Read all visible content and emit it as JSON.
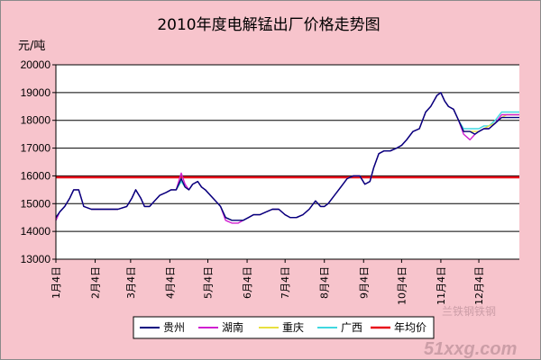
{
  "chart_data": {
    "type": "line",
    "title": "2010年度电解锰出厂价格走势图",
    "ylabel": "元/吨",
    "xlabel": "",
    "ylim": [
      13000,
      20000
    ],
    "yticks": [
      13000,
      14000,
      15000,
      16000,
      17000,
      18000,
      19000,
      20000
    ],
    "xlim": [
      "2010-01-04",
      "2011-01-05"
    ],
    "xticks": [
      "1月4日",
      "2月4日",
      "3月4日",
      "4月4日",
      "5月4日",
      "6月4日",
      "7月4日",
      "8月4日",
      "9月4日",
      "10月4日",
      "11月4日",
      "12月4日"
    ],
    "xtick_dates": [
      "2010-01-04",
      "2010-02-04",
      "2010-03-04",
      "2010-04-04",
      "2010-05-04",
      "2010-06-04",
      "2010-07-04",
      "2010-08-04",
      "2010-09-04",
      "2010-10-04",
      "2010-11-04",
      "2010-12-04"
    ],
    "grid": "horizontal",
    "legend_position": "bottom",
    "series": [
      {
        "name": "贵州",
        "color": "#000080",
        "x": [
          "2010-01-04",
          "2010-01-07",
          "2010-01-11",
          "2010-01-15",
          "2010-01-18",
          "2010-01-22",
          "2010-01-26",
          "2010-02-01",
          "2010-02-04",
          "2010-02-08",
          "2010-02-15",
          "2010-02-22",
          "2010-03-01",
          "2010-03-05",
          "2010-03-08",
          "2010-03-12",
          "2010-03-15",
          "2010-03-19",
          "2010-03-23",
          "2010-03-27",
          "2010-04-01",
          "2010-04-05",
          "2010-04-09",
          "2010-04-13",
          "2010-04-16",
          "2010-04-19",
          "2010-04-22",
          "2010-04-26",
          "2010-04-29",
          "2010-05-02",
          "2010-05-06",
          "2010-05-10",
          "2010-05-14",
          "2010-05-18",
          "2010-05-23",
          "2010-05-28",
          "2010-06-01",
          "2010-06-05",
          "2010-06-09",
          "2010-06-14",
          "2010-06-19",
          "2010-06-24",
          "2010-06-29",
          "2010-07-04",
          "2010-07-08",
          "2010-07-13",
          "2010-07-18",
          "2010-07-23",
          "2010-07-28",
          "2010-08-01",
          "2010-08-04",
          "2010-08-07",
          "2010-08-12",
          "2010-08-17",
          "2010-08-22",
          "2010-08-27",
          "2010-09-01",
          "2010-09-05",
          "2010-09-09",
          "2010-09-12",
          "2010-09-16",
          "2010-09-20",
          "2010-09-25",
          "2010-09-30",
          "2010-10-04",
          "2010-10-08",
          "2010-10-13",
          "2010-10-18",
          "2010-10-23",
          "2010-10-27",
          "2010-11-01",
          "2010-11-04",
          "2010-11-07",
          "2010-11-10",
          "2010-11-14",
          "2010-11-18",
          "2010-11-22",
          "2010-11-27",
          "2010-12-01",
          "2010-12-04",
          "2010-12-08",
          "2010-12-12",
          "2010-12-17",
          "2010-12-22",
          "2010-12-26",
          "2011-01-05"
        ],
        "values": [
          14500,
          14700,
          14900,
          15200,
          15500,
          15500,
          14900,
          14800,
          14800,
          14800,
          14800,
          14800,
          14900,
          15200,
          15500,
          15200,
          14900,
          14900,
          15100,
          15300,
          15400,
          15500,
          15500,
          15900,
          15600,
          15500,
          15700,
          15800,
          15600,
          15500,
          15300,
          15100,
          14900,
          14500,
          14400,
          14400,
          14400,
          14500,
          14600,
          14600,
          14700,
          14800,
          14800,
          14600,
          14500,
          14500,
          14600,
          14800,
          15100,
          14900,
          14900,
          15000,
          15300,
          15600,
          15900,
          16000,
          16000,
          15700,
          15800,
          16300,
          16800,
          16900,
          16900,
          17000,
          17100,
          17300,
          17600,
          17700,
          18300,
          18500,
          18900,
          19000,
          18700,
          18500,
          18400,
          18000,
          17600,
          17600,
          17500,
          17600,
          17700,
          17700,
          17900,
          18100,
          18100,
          18100
        ]
      },
      {
        "name": "湖南",
        "color": "#d020d0",
        "x": [
          "2010-01-04",
          "2010-01-07",
          "2010-01-11",
          "2010-01-15",
          "2010-01-18",
          "2010-01-22",
          "2010-01-26",
          "2010-02-01",
          "2010-02-04",
          "2010-02-08",
          "2010-02-15",
          "2010-02-22",
          "2010-03-01",
          "2010-03-05",
          "2010-03-08",
          "2010-03-12",
          "2010-03-15",
          "2010-03-19",
          "2010-03-23",
          "2010-03-27",
          "2010-04-01",
          "2010-04-05",
          "2010-04-09",
          "2010-04-13",
          "2010-04-16",
          "2010-04-19",
          "2010-04-22",
          "2010-04-26",
          "2010-04-29",
          "2010-05-02",
          "2010-05-06",
          "2010-05-10",
          "2010-05-14",
          "2010-05-18",
          "2010-05-23",
          "2010-05-28",
          "2010-06-01",
          "2010-06-05",
          "2010-06-09",
          "2010-06-14",
          "2010-06-19",
          "2010-06-24",
          "2010-06-29",
          "2010-07-04",
          "2010-07-08",
          "2010-07-13",
          "2010-07-18",
          "2010-07-23",
          "2010-07-28",
          "2010-08-01",
          "2010-08-04",
          "2010-08-07",
          "2010-08-12",
          "2010-08-17",
          "2010-08-22",
          "2010-08-27",
          "2010-09-01",
          "2010-09-05",
          "2010-09-09",
          "2010-09-12",
          "2010-09-16",
          "2010-09-20",
          "2010-09-25",
          "2010-09-30",
          "2010-10-04",
          "2010-10-08",
          "2010-10-13",
          "2010-10-18",
          "2010-10-23",
          "2010-10-27",
          "2010-11-01",
          "2010-11-04",
          "2010-11-07",
          "2010-11-10",
          "2010-11-14",
          "2010-11-18",
          "2010-11-22",
          "2010-11-27",
          "2010-12-01",
          "2010-12-04",
          "2010-12-08",
          "2010-12-12",
          "2010-12-17",
          "2010-12-22",
          "2010-12-26",
          "2011-01-05"
        ],
        "values": [
          14400,
          14700,
          14900,
          15200,
          15500,
          15500,
          14900,
          14800,
          14800,
          14800,
          14800,
          14800,
          14900,
          15200,
          15500,
          15200,
          14900,
          14900,
          15100,
          15300,
          15400,
          15500,
          15500,
          16100,
          15700,
          15500,
          15700,
          15800,
          15600,
          15500,
          15300,
          15100,
          14900,
          14400,
          14300,
          14300,
          14400,
          14500,
          14600,
          14600,
          14700,
          14800,
          14800,
          14600,
          14500,
          14500,
          14600,
          14800,
          15100,
          14900,
          14900,
          15000,
          15300,
          15600,
          15900,
          16000,
          16000,
          15700,
          15800,
          16300,
          16800,
          16900,
          16900,
          17000,
          17100,
          17300,
          17600,
          17700,
          18300,
          18500,
          18900,
          19000,
          18700,
          18500,
          18400,
          18000,
          17500,
          17300,
          17500,
          17600,
          17700,
          17700,
          17900,
          18200,
          18200,
          18200
        ]
      },
      {
        "name": "重庆",
        "color": "#e8e040",
        "x": [
          "2010-01-04",
          "2010-01-07",
          "2010-01-11",
          "2010-01-15",
          "2010-01-18",
          "2010-01-22",
          "2010-01-26",
          "2010-02-01",
          "2010-02-04",
          "2010-02-08",
          "2010-02-15",
          "2010-02-22",
          "2010-03-01",
          "2010-03-05",
          "2010-03-08",
          "2010-03-12",
          "2010-03-15",
          "2010-03-19",
          "2010-03-23",
          "2010-03-27",
          "2010-04-01",
          "2010-04-05",
          "2010-04-09",
          "2010-04-13",
          "2010-04-16",
          "2010-04-19",
          "2010-04-22",
          "2010-04-26",
          "2010-04-29",
          "2010-05-02",
          "2010-05-06",
          "2010-05-10",
          "2010-05-14",
          "2010-05-18",
          "2010-05-23",
          "2010-05-28",
          "2010-06-01",
          "2010-06-05",
          "2010-06-09",
          "2010-06-14",
          "2010-06-19",
          "2010-06-24",
          "2010-06-29",
          "2010-07-04",
          "2010-07-08",
          "2010-07-13",
          "2010-07-18",
          "2010-07-23",
          "2010-07-28",
          "2010-08-01",
          "2010-08-04",
          "2010-08-07",
          "2010-08-12",
          "2010-08-17",
          "2010-08-22",
          "2010-08-27",
          "2010-09-01",
          "2010-09-05",
          "2010-09-09",
          "2010-09-12",
          "2010-09-16",
          "2010-09-20",
          "2010-09-25",
          "2010-09-30",
          "2010-10-04",
          "2010-10-08",
          "2010-10-13",
          "2010-10-18",
          "2010-10-23",
          "2010-10-27",
          "2010-11-01",
          "2010-11-04",
          "2010-11-07",
          "2010-11-10",
          "2010-11-14",
          "2010-11-18",
          "2010-11-22",
          "2010-11-27",
          "2010-12-01",
          "2010-12-04",
          "2010-12-08",
          "2010-12-12",
          "2010-12-17",
          "2010-12-22",
          "2010-12-26",
          "2011-01-05"
        ],
        "values": [
          14500,
          14700,
          14900,
          15200,
          15500,
          15500,
          14900,
          14800,
          14800,
          14800,
          14800,
          14800,
          14900,
          15200,
          15500,
          15200,
          14900,
          14900,
          15100,
          15300,
          15400,
          15500,
          15500,
          15900,
          15600,
          15500,
          15700,
          15800,
          15600,
          15500,
          15300,
          15100,
          14900,
          14500,
          14400,
          14400,
          14400,
          14500,
          14600,
          14600,
          14700,
          14800,
          14800,
          14600,
          14500,
          14500,
          14600,
          14800,
          15100,
          14900,
          14900,
          15000,
          15300,
          15600,
          15900,
          16000,
          16000,
          15700,
          15800,
          16300,
          16800,
          16900,
          16900,
          17000,
          17100,
          17300,
          17600,
          17700,
          18300,
          18500,
          18900,
          19000,
          18700,
          18500,
          18400,
          18000,
          17600,
          17600,
          17600,
          17600,
          17700,
          17800,
          17900,
          18100,
          18200,
          18200
        ]
      },
      {
        "name": "广西",
        "color": "#40d8e0",
        "x": [
          "2010-01-04",
          "2010-01-07",
          "2010-01-11",
          "2010-01-15",
          "2010-01-18",
          "2010-01-22",
          "2010-01-26",
          "2010-02-01",
          "2010-02-04",
          "2010-02-08",
          "2010-02-15",
          "2010-02-22",
          "2010-03-01",
          "2010-03-05",
          "2010-03-08",
          "2010-03-12",
          "2010-03-15",
          "2010-03-19",
          "2010-03-23",
          "2010-03-27",
          "2010-04-01",
          "2010-04-05",
          "2010-04-09",
          "2010-04-13",
          "2010-04-16",
          "2010-04-19",
          "2010-04-22",
          "2010-04-26",
          "2010-04-29",
          "2010-05-02",
          "2010-05-06",
          "2010-05-10",
          "2010-05-14",
          "2010-05-18",
          "2010-05-23",
          "2010-05-28",
          "2010-06-01",
          "2010-06-05",
          "2010-06-09",
          "2010-06-14",
          "2010-06-19",
          "2010-06-24",
          "2010-06-29",
          "2010-07-04",
          "2010-07-08",
          "2010-07-13",
          "2010-07-18",
          "2010-07-23",
          "2010-07-28",
          "2010-08-01",
          "2010-08-04",
          "2010-08-07",
          "2010-08-12",
          "2010-08-17",
          "2010-08-22",
          "2010-08-27",
          "2010-09-01",
          "2010-09-05",
          "2010-09-09",
          "2010-09-12",
          "2010-09-16",
          "2010-09-20",
          "2010-09-25",
          "2010-09-30",
          "2010-10-04",
          "2010-10-08",
          "2010-10-13",
          "2010-10-18",
          "2010-10-23",
          "2010-10-27",
          "2010-11-01",
          "2010-11-04",
          "2010-11-07",
          "2010-11-10",
          "2010-11-14",
          "2010-11-18",
          "2010-11-22",
          "2010-11-27",
          "2010-12-01",
          "2010-12-04",
          "2010-12-08",
          "2010-12-12",
          "2010-12-17",
          "2010-12-22",
          "2010-12-26",
          "2011-01-05"
        ],
        "values": [
          14400,
          14700,
          14900,
          15200,
          15500,
          15500,
          14900,
          14800,
          14800,
          14800,
          14800,
          14800,
          14900,
          15200,
          15500,
          15200,
          14900,
          14900,
          15100,
          15300,
          15400,
          15500,
          15500,
          15800,
          15600,
          15500,
          15700,
          15800,
          15600,
          15500,
          15300,
          15100,
          14900,
          14500,
          14400,
          14400,
          14400,
          14500,
          14600,
          14600,
          14700,
          14800,
          14800,
          14600,
          14500,
          14500,
          14600,
          14800,
          15100,
          14900,
          14900,
          15000,
          15300,
          15600,
          15900,
          16000,
          16000,
          15700,
          15800,
          16300,
          16800,
          16900,
          16900,
          17000,
          17100,
          17300,
          17600,
          17700,
          18300,
          18500,
          18900,
          19000,
          18700,
          18500,
          18400,
          18000,
          17700,
          17700,
          17700,
          17700,
          17800,
          17800,
          18000,
          18300,
          18300,
          18300
        ]
      },
      {
        "name": "年均价",
        "color": "#e8101a",
        "x": [
          "2010-01-04",
          "2011-01-05"
        ],
        "values": [
          15950,
          15950
        ]
      }
    ],
    "watermark": "兰铁钢铁钢 51xxg.com"
  }
}
